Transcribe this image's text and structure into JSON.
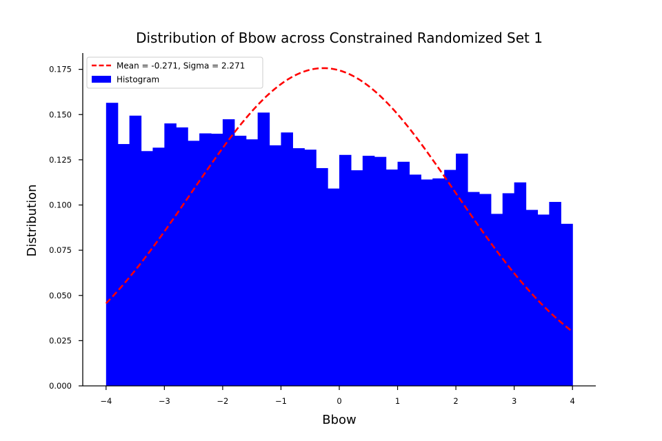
{
  "chart_data": {
    "type": "bar",
    "title": "Distribution of Bbow across Constrained Randomized Set 1",
    "xlabel": "Bbow",
    "ylabel": "Distribution",
    "xlim": [
      -4.4,
      4.4
    ],
    "ylim": [
      0,
      0.184
    ],
    "xticks": [
      -4,
      -3,
      -2,
      -1,
      0,
      1,
      2,
      3,
      4
    ],
    "xtick_labels": [
      "−4",
      "−3",
      "−2",
      "−1",
      "0",
      "1",
      "2",
      "3",
      "4"
    ],
    "yticks": [
      0.0,
      0.025,
      0.05,
      0.075,
      0.1,
      0.125,
      0.15,
      0.175
    ],
    "ytick_labels": [
      "0.000",
      "0.025",
      "0.050",
      "0.075",
      "0.100",
      "0.125",
      "0.150",
      "0.175"
    ],
    "grid": false,
    "legend_position": "top-left",
    "histogram": {
      "name": "Histogram",
      "color": "#0000ff",
      "bin_start": -4,
      "bin_end": 4,
      "values": [
        0.1565,
        0.1337,
        0.1494,
        0.1298,
        0.1317,
        0.1451,
        0.1429,
        0.1355,
        0.1396,
        0.1394,
        0.1474,
        0.1383,
        0.1363,
        0.1511,
        0.133,
        0.1401,
        0.1314,
        0.1306,
        0.1204,
        0.1091,
        0.1277,
        0.1192,
        0.1272,
        0.1266,
        0.1196,
        0.1239,
        0.1168,
        0.1141,
        0.1147,
        0.1194,
        0.1284,
        0.1072,
        0.1061,
        0.0951,
        0.1065,
        0.1125,
        0.0973,
        0.0947,
        0.1017,
        0.0896
      ]
    },
    "fit_curve": {
      "name": "Mean = -0.271, Sigma = 2.271",
      "color": "#ff0000",
      "style": "dashed",
      "mean": -0.271,
      "sigma": 2.271
    }
  }
}
